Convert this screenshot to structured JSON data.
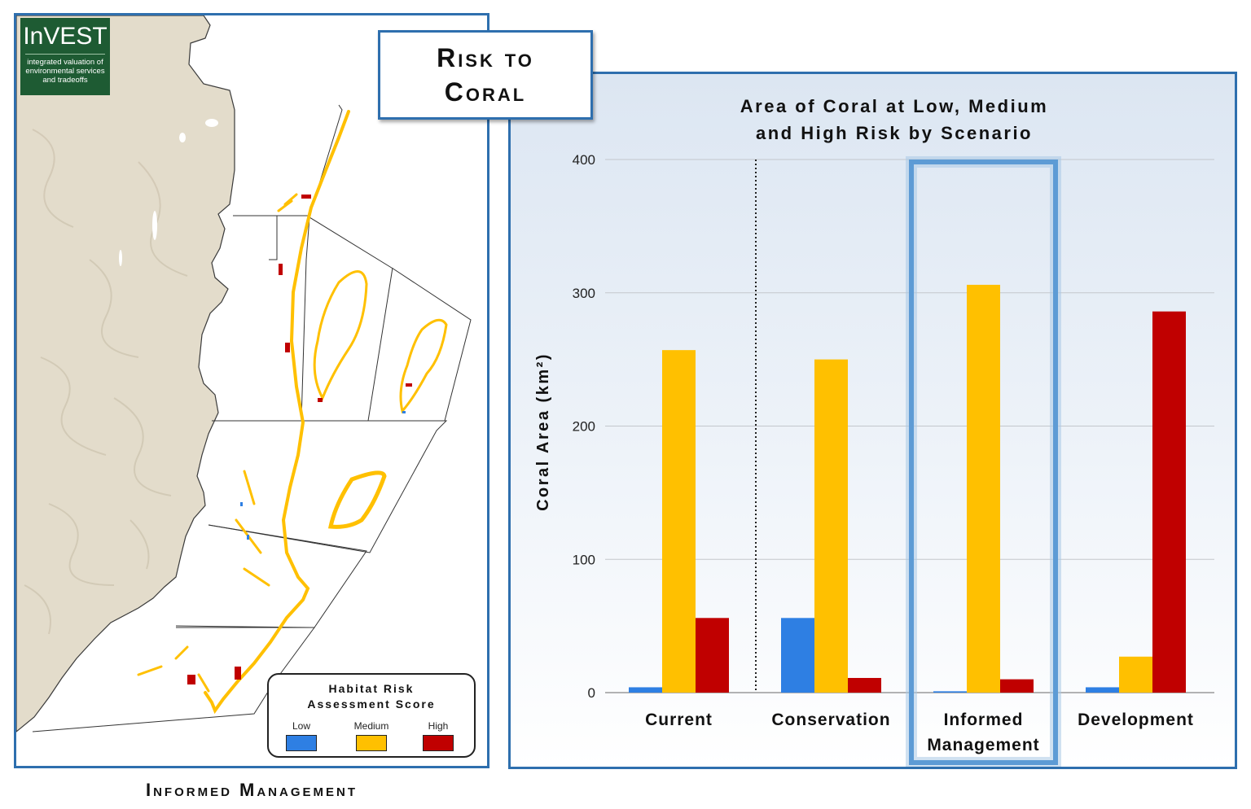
{
  "logo": {
    "name": "InVEST",
    "tagline": "integrated valuation of environmental services and tradeoffs"
  },
  "title_box": {
    "line1": "Risk to",
    "line2": "Coral"
  },
  "map_caption": "Informed Management",
  "legend": {
    "title_line1": "Habitat Risk",
    "title_line2": "Assessment Score",
    "items": [
      {
        "label": "Low",
        "color": "#2e7fe3"
      },
      {
        "label": "Medium",
        "color": "#ffc000"
      },
      {
        "label": "High",
        "color": "#c00000"
      }
    ]
  },
  "colors": {
    "panel_border": "#2e6fae",
    "land": "#e3dccb",
    "low": "#2e7fe3",
    "medium": "#ffc000",
    "high": "#c00000",
    "logo_bg": "#1e5b33"
  },
  "chart_data": {
    "type": "bar",
    "title": "Area of Coral at Low, Medium and High Risk by Scenario",
    "title_lines": [
      "Area of Coral at Low, Medium",
      "and High Risk by Scenario"
    ],
    "ylabel": "Coral Area (km²)",
    "ylim": [
      0,
      400
    ],
    "yticks": [
      0,
      100,
      200,
      300,
      400
    ],
    "grid": true,
    "categories": [
      "Current",
      "Conservation",
      "Informed Management",
      "Development"
    ],
    "category_label_lines": [
      [
        "Current"
      ],
      [
        "Conservation"
      ],
      [
        "Informed",
        "Management"
      ],
      [
        "Development"
      ]
    ],
    "series": [
      {
        "name": "Low",
        "color": "#2e7fe3",
        "values": [
          4,
          56,
          1,
          4
        ]
      },
      {
        "name": "Medium",
        "color": "#ffc000",
        "values": [
          257,
          250,
          306,
          27
        ]
      },
      {
        "name": "High",
        "color": "#c00000",
        "values": [
          56,
          11,
          10,
          286
        ]
      }
    ],
    "highlighted_category": "Informed Management",
    "separator_after_category": "Current"
  }
}
